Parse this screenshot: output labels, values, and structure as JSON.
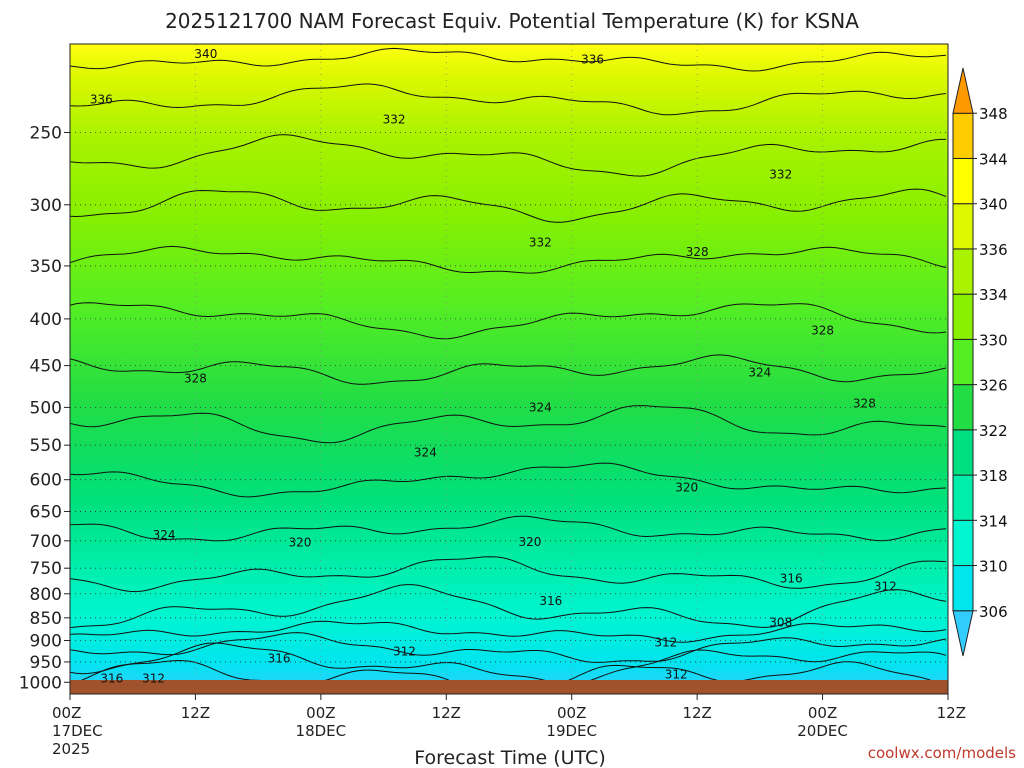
{
  "chart_data": {
    "type": "heatmap",
    "title": "2025121700 NAM Forecast Equiv. Potential Temperature (K) for KSNA",
    "xlabel": "Forecast Time (UTC)",
    "ylabel": "",
    "y_ticks": [
      250,
      300,
      350,
      400,
      450,
      500,
      550,
      600,
      650,
      700,
      750,
      800,
      850,
      900,
      950,
      1000
    ],
    "y_tick_labels": [
      "250",
      "300",
      "350",
      "400",
      "450",
      "500",
      "550",
      "600",
      "650",
      "700",
      "750",
      "800",
      "850",
      "900",
      "950",
      "1000"
    ],
    "y_range": [
      1030,
      200
    ],
    "y_scale": "log",
    "x_range": [
      0,
      84
    ],
    "x_ticks": [
      0,
      12,
      24,
      36,
      48,
      60,
      72,
      84
    ],
    "x_tick_labels": [
      {
        "time": "00Z",
        "date": "17DEC",
        "year": "2025"
      },
      {
        "time": "12Z",
        "date": "",
        "year": ""
      },
      {
        "time": "00Z",
        "date": "18DEC",
        "year": ""
      },
      {
        "time": "12Z",
        "date": "",
        "year": ""
      },
      {
        "time": "00Z",
        "date": "19DEC",
        "year": ""
      },
      {
        "time": "12Z",
        "date": "",
        "year": ""
      },
      {
        "time": "00Z",
        "date": "20DEC",
        "year": ""
      },
      {
        "time": "12Z",
        "date": "",
        "year": ""
      }
    ],
    "grid": true,
    "colorbar": {
      "placement": "right",
      "levels": [
        306,
        310,
        314,
        318,
        322,
        326,
        330,
        334,
        336,
        340,
        344,
        348
      ],
      "labels": [
        "306",
        "310",
        "314",
        "318",
        "322",
        "326",
        "330",
        "334",
        "336",
        "340",
        "344",
        "348"
      ],
      "colors": [
        "#33ccff",
        "#00e5ee",
        "#00f5d0",
        "#00eeaa",
        "#00e080",
        "#22dd44",
        "#55ee22",
        "#88f000",
        "#aaf200",
        "#ddf800",
        "#ffff00",
        "#ffcc00",
        "#ff9900"
      ]
    },
    "contour_labels": [
      {
        "text": "340",
        "x": 13,
        "p": 205
      },
      {
        "text": "336",
        "x": 3,
        "p": 230
      },
      {
        "text": "336",
        "x": 50,
        "p": 208
      },
      {
        "text": "332",
        "x": 31,
        "p": 242
      },
      {
        "text": "332",
        "x": 45,
        "p": 330
      },
      {
        "text": "332",
        "x": 68,
        "p": 278
      },
      {
        "text": "328",
        "x": 12,
        "p": 465
      },
      {
        "text": "328",
        "x": 60,
        "p": 338
      },
      {
        "text": "328",
        "x": 72,
        "p": 412
      },
      {
        "text": "328",
        "x": 76,
        "p": 495
      },
      {
        "text": "324",
        "x": 9,
        "p": 690
      },
      {
        "text": "324",
        "x": 34,
        "p": 560
      },
      {
        "text": "324",
        "x": 45,
        "p": 500
      },
      {
        "text": "324",
        "x": 66,
        "p": 458
      },
      {
        "text": "320",
        "x": 22,
        "p": 703
      },
      {
        "text": "320",
        "x": 44,
        "p": 702
      },
      {
        "text": "320",
        "x": 59,
        "p": 612
      },
      {
        "text": "316",
        "x": 46,
        "p": 815
      },
      {
        "text": "316",
        "x": 20,
        "p": 942
      },
      {
        "text": "316",
        "x": 4,
        "p": 990
      },
      {
        "text": "316",
        "x": 69,
        "p": 770
      },
      {
        "text": "312",
        "x": 8,
        "p": 990
      },
      {
        "text": "312",
        "x": 32,
        "p": 925
      },
      {
        "text": "312",
        "x": 57,
        "p": 905
      },
      {
        "text": "312",
        "x": 58,
        "p": 980
      },
      {
        "text": "312",
        "x": 78,
        "p": 785
      },
      {
        "text": "308",
        "x": 68,
        "p": 860
      }
    ],
    "credit": "coolwx.com/models"
  },
  "colors": {
    "ground": "#a0522d",
    "contour": "#111111"
  }
}
